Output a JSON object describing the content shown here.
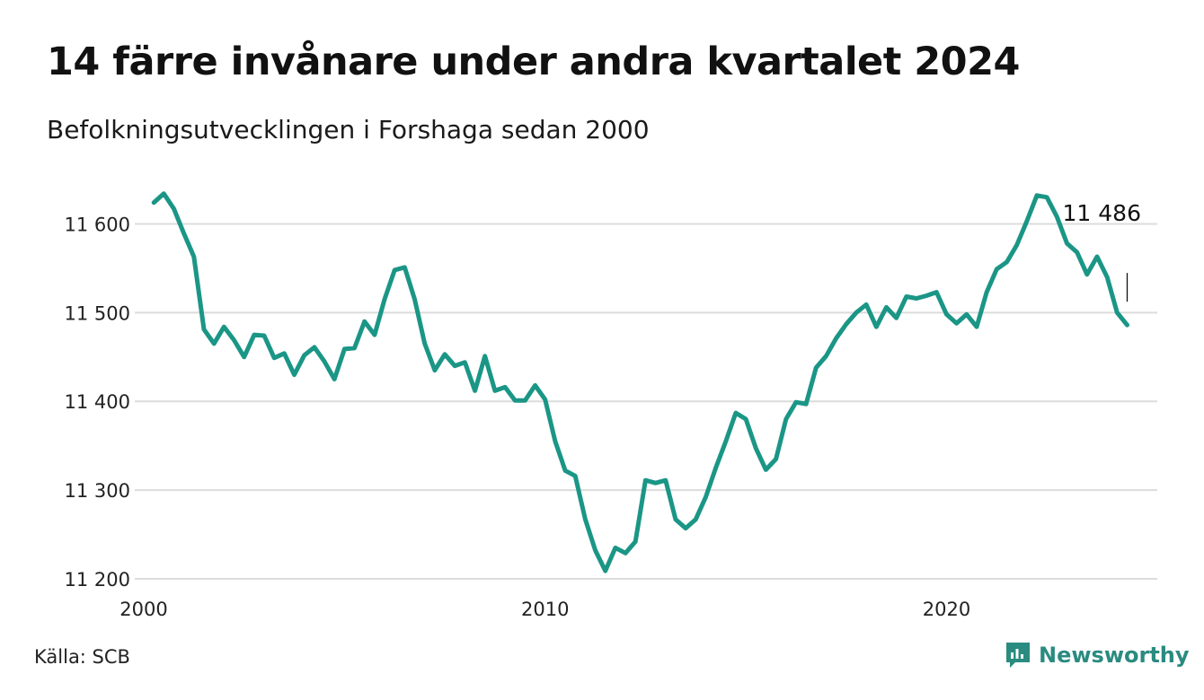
{
  "title": "14 färre invånare under andra kvartalet 2024",
  "subtitle": "Befolkningsutvecklingen i Forshaga sedan 2000",
  "source": "Källa: SCB",
  "brand": {
    "name": "Newsworthy",
    "icon": "newsworthy-logo-icon",
    "color": "#2a8b80"
  },
  "chart_data": {
    "type": "line",
    "color": "#1b9686",
    "grid": true,
    "xlim": [
      2000,
      2025.25
    ],
    "ylim": [
      11200,
      11650
    ],
    "x_ticks": [
      {
        "value": 2000,
        "label": "2000"
      },
      {
        "value": 2010,
        "label": "2010"
      },
      {
        "value": 2020,
        "label": "2020"
      }
    ],
    "y_ticks": [
      {
        "value": 11200,
        "label": "11 200"
      },
      {
        "value": 11300,
        "label": "11 300"
      },
      {
        "value": 11400,
        "label": "11 400"
      },
      {
        "value": 11500,
        "label": "11 500"
      },
      {
        "value": 11600,
        "label": "11 600"
      }
    ],
    "x_start": 2000.25,
    "x_step": 0.25,
    "values": [
      11624,
      11634,
      11617,
      11589,
      11563,
      11481,
      11465,
      11484,
      11469,
      11450,
      11475,
      11474,
      11449,
      11454,
      11430,
      11452,
      11461,
      11445,
      11425,
      11459,
      11460,
      11490,
      11475,
      11515,
      11548,
      11551,
      11515,
      11465,
      11435,
      11453,
      11440,
      11444,
      11412,
      11451,
      11412,
      11416,
      11401,
      11401,
      11418,
      11402,
      11355,
      11322,
      11316,
      11267,
      11232,
      11209,
      11235,
      11229,
      11242,
      11311,
      11308,
      11311,
      11267,
      11257,
      11267,
      11292,
      11325,
      11355,
      11387,
      11380,
      11347,
      11323,
      11335,
      11380,
      11399,
      11397,
      11438,
      11451,
      11471,
      11487,
      11500,
      11509,
      11484,
      11506,
      11494,
      11518,
      11516,
      11519,
      11523,
      11498,
      11488,
      11498,
      11484,
      11523,
      11549,
      11557,
      11576,
      11603,
      11632,
      11630,
      11608,
      11578,
      11568,
      11543,
      11563,
      11540,
      11500,
      11486
    ],
    "end_label": "11 486"
  }
}
